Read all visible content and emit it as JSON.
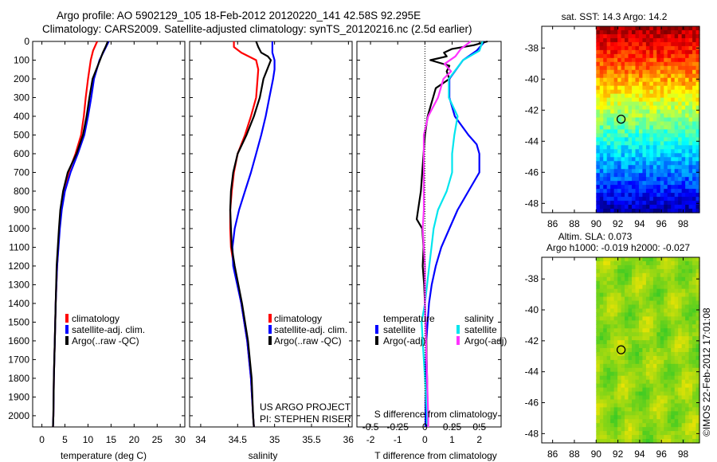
{
  "header": {
    "line1": "Argo profile: AO 5902129_105 18-Feb-2012 20120220_141 42.58S 92.295E",
    "line2": "Climatology: CARS2009. Satellite-adjusted climatology: synTS_20120216.nc (2.5d earlier)"
  },
  "credits": {
    "project": "US ARGO PROJECT",
    "pi": "PI: STEPHEN RISER",
    "stamp": "©IMOS 22-Feb-2012 17:01:08"
  },
  "colors": {
    "climatology": "#ff0000",
    "satellite": "#0000ff",
    "argo": "#000000",
    "satellite_salinity": "#00e5ee",
    "argo_salinity": "#ff33ff"
  },
  "depth_ticks": [
    0,
    100,
    200,
    300,
    400,
    500,
    600,
    700,
    800,
    900,
    1000,
    1100,
    1200,
    1300,
    1400,
    1500,
    1600,
    1700,
    1800,
    1900,
    2000
  ],
  "chart_data": [
    {
      "id": "temperature",
      "type": "line",
      "xlabel": "temperature (deg C)",
      "ylabel": "",
      "xlim": [
        -2,
        31
      ],
      "ylim": [
        2060,
        0
      ],
      "xticks": [
        0,
        5,
        10,
        15,
        20,
        25,
        30
      ],
      "legend": [
        "climatology",
        "satellite-adj. clim.",
        "Argo(..raw -QC)"
      ],
      "series": [
        {
          "name": "climatology",
          "color": "#ff0000",
          "depth": [
            0,
            50,
            100,
            200,
            300,
            400,
            500,
            600,
            700,
            800,
            900,
            1000,
            1200,
            1400,
            1600,
            1800,
            2000,
            2060
          ],
          "values": [
            12.0,
            11.1,
            10.6,
            10.0,
            9.5,
            9.1,
            8.5,
            7.3,
            5.8,
            4.8,
            4.2,
            3.8,
            3.3,
            3.0,
            2.8,
            2.6,
            2.5,
            2.4
          ]
        },
        {
          "name": "satellite-adj. clim.",
          "color": "#0000ff",
          "depth": [
            0,
            50,
            100,
            200,
            300,
            400,
            500,
            600,
            700,
            800,
            900,
            1000,
            1200,
            1400,
            1600,
            1800,
            2000,
            2060
          ],
          "values": [
            14.5,
            13.5,
            12.5,
            11.3,
            10.7,
            10.0,
            9.2,
            7.8,
            6.2,
            5.0,
            4.3,
            3.9,
            3.3,
            3.0,
            2.8,
            2.6,
            2.5,
            2.4
          ]
        },
        {
          "name": "Argo(..raw -QC)",
          "color": "#000000",
          "depth": [
            0,
            30,
            60,
            100,
            150,
            200,
            300,
            400,
            500,
            600,
            700,
            800,
            900,
            1000,
            1200,
            1400,
            1600,
            1800,
            2000,
            2060
          ],
          "values": [
            14.3,
            13.8,
            13.2,
            12.6,
            11.8,
            11.0,
            10.3,
            9.7,
            8.9,
            7.5,
            5.6,
            4.6,
            4.0,
            3.7,
            3.2,
            3.0,
            2.8,
            2.6,
            2.5,
            2.4
          ]
        }
      ]
    },
    {
      "id": "salinity",
      "type": "line",
      "xlabel": "salinity",
      "ylabel": "",
      "xlim": [
        33.85,
        36.05
      ],
      "ylim": [
        2060,
        0
      ],
      "xticks": [
        34,
        34.5,
        35,
        35.5,
        36
      ],
      "legend": [
        "climatology",
        "satellite-adj. clim.",
        "Argo(..raw -QC)"
      ],
      "series": [
        {
          "name": "climatology",
          "color": "#ff0000",
          "depth": [
            0,
            30,
            60,
            100,
            150,
            200,
            300,
            400,
            500,
            600,
            700,
            800,
            900,
            1000,
            1100,
            1200,
            1400,
            1600,
            1800,
            2000,
            2060
          ],
          "values": [
            34.45,
            34.45,
            34.55,
            34.75,
            34.78,
            34.77,
            34.75,
            34.68,
            34.6,
            34.5,
            34.45,
            34.42,
            34.4,
            34.4,
            34.41,
            34.45,
            34.55,
            34.63,
            34.68,
            34.71,
            34.72
          ]
        },
        {
          "name": "satellite-adj. clim.",
          "color": "#0000ff",
          "depth": [
            0,
            30,
            60,
            100,
            150,
            200,
            300,
            400,
            500,
            600,
            700,
            800,
            900,
            1000,
            1100,
            1200,
            1400,
            1600,
            1800,
            2000,
            2060
          ],
          "values": [
            34.97,
            34.97,
            34.97,
            35.0,
            35.0,
            34.98,
            34.93,
            34.88,
            34.82,
            34.75,
            34.68,
            34.6,
            34.52,
            34.46,
            34.43,
            34.44,
            34.55,
            34.63,
            34.68,
            34.71,
            34.72
          ]
        },
        {
          "name": "Argo(..raw -QC)",
          "color": "#000000",
          "depth": [
            0,
            30,
            60,
            80,
            100,
            150,
            200,
            300,
            400,
            500,
            600,
            700,
            800,
            900,
            1000,
            1100,
            1200,
            1400,
            1600,
            1800,
            2000,
            2060
          ],
          "values": [
            34.75,
            34.78,
            34.82,
            34.91,
            34.95,
            34.9,
            34.85,
            34.8,
            34.72,
            34.62,
            34.5,
            34.44,
            34.41,
            34.4,
            34.41,
            34.42,
            34.46,
            34.56,
            34.64,
            34.69,
            34.71,
            34.72
          ]
        }
      ]
    },
    {
      "id": "difference",
      "type": "line",
      "xlabel": "T difference from climatology",
      "xlabel_top": "S difference from climatology",
      "ylabel": "",
      "xlim": [
        -2.5,
        2.8
      ],
      "ylim": [
        2060,
        0
      ],
      "xticks": [
        -2,
        -1,
        0,
        1,
        2
      ],
      "xticks_s": [
        -0.5,
        -0.25,
        0,
        0.25,
        0.5
      ],
      "legend_groups": {
        "temperature": [
          "satellite",
          "Argo(-adj)"
        ],
        "salinity": [
          "satellite",
          "Argo(-adj)"
        ]
      },
      "series": [
        {
          "name": "temperature satellite",
          "color": "#0000ff",
          "depth": [
            0,
            50,
            100,
            200,
            300,
            400,
            500,
            550,
            600,
            700,
            800,
            900,
            1000,
            1100,
            1200,
            1300,
            1400,
            1600,
            1800,
            2000,
            2060
          ],
          "values": [
            2.2,
            1.9,
            1.4,
            0.9,
            0.9,
            1.1,
            1.6,
            1.9,
            2.0,
            2.0,
            1.6,
            1.2,
            0.9,
            0.6,
            0.4,
            0.25,
            0.15,
            0.05,
            0.03,
            0.02,
            0.02
          ]
        },
        {
          "name": "temperature Argo(-adj)",
          "color": "#000000",
          "depth": [
            0,
            20,
            40,
            60,
            80,
            100,
            130,
            160,
            200,
            250,
            300,
            350,
            400,
            450,
            500,
            600,
            700,
            800,
            900,
            950,
            1000,
            1100,
            1200,
            1300,
            1400,
            1500,
            1600,
            1800,
            2000,
            2060
          ],
          "values": [
            2.3,
            1.8,
            1.0,
            0.7,
            0.8,
            0.2,
            0.9,
            0.8,
            0.9,
            0.4,
            0.3,
            0.2,
            0.1,
            0.05,
            0.0,
            -0.05,
            -0.1,
            -0.15,
            -0.25,
            -0.3,
            -0.1,
            -0.05,
            -0.08,
            -0.03,
            0.0,
            0.02,
            0.05,
            0.08,
            0.1,
            0.1
          ]
        },
        {
          "name": "salinity satellite",
          "color": "#00e5ee",
          "depth": [
            0,
            50,
            100,
            200,
            300,
            400,
            500,
            600,
            700,
            800,
            900,
            1000,
            1100,
            1200,
            1300,
            1400,
            1500,
            1600,
            1800,
            2000,
            2060
          ],
          "values": [
            0.53,
            0.5,
            0.35,
            0.22,
            0.22,
            0.3,
            0.27,
            0.25,
            0.25,
            0.2,
            0.12,
            0.08,
            0.06,
            0.04,
            0.02,
            0.0,
            -0.03,
            -0.02,
            0.0,
            0.02,
            0.02
          ]
        },
        {
          "name": "salinity Argo(-adj)",
          "color": "#ff33ff",
          "depth": [
            0,
            40,
            80,
            120,
            160,
            200,
            300,
            400,
            500,
            600,
            700,
            800,
            900,
            1000,
            1100,
            1200,
            1300,
            1400,
            1600,
            1800,
            2000,
            2060
          ],
          "values": [
            0.42,
            0.33,
            0.28,
            0.18,
            0.24,
            0.17,
            0.12,
            0.03,
            -0.01,
            -0.01,
            -0.01,
            -0.01,
            -0.01,
            -0.02,
            -0.01,
            0.0,
            0.0,
            0.0,
            0.01,
            0.02,
            0.03,
            0.03
          ]
        }
      ]
    },
    {
      "id": "sst_map",
      "type": "heatmap",
      "title": "sat. SST: 14.3 Argo: 14.2",
      "xticks": [
        86,
        88,
        90,
        92,
        94,
        96,
        98
      ],
      "yticks": [
        -38,
        -40,
        -42,
        -44,
        -46,
        -48
      ],
      "xlim": [
        85,
        99.5
      ],
      "ylim": [
        -48.6,
        -36.6
      ],
      "data_lon_start": 90,
      "argo_position": [
        92.295,
        -42.58
      ]
    },
    {
      "id": "sla_map",
      "type": "heatmap",
      "title": "Altim. SLA: 0.073",
      "subtitle": "Argo h1000: -0.019 h2000: -0.027",
      "xticks": [
        86,
        88,
        90,
        92,
        94,
        96,
        98
      ],
      "yticks": [
        -38,
        -40,
        -42,
        -44,
        -46,
        -48
      ],
      "xlim": [
        85,
        99.5
      ],
      "ylim": [
        -48.6,
        -36.6
      ],
      "data_lon_start": 90,
      "argo_position": [
        92.295,
        -42.58
      ]
    }
  ]
}
